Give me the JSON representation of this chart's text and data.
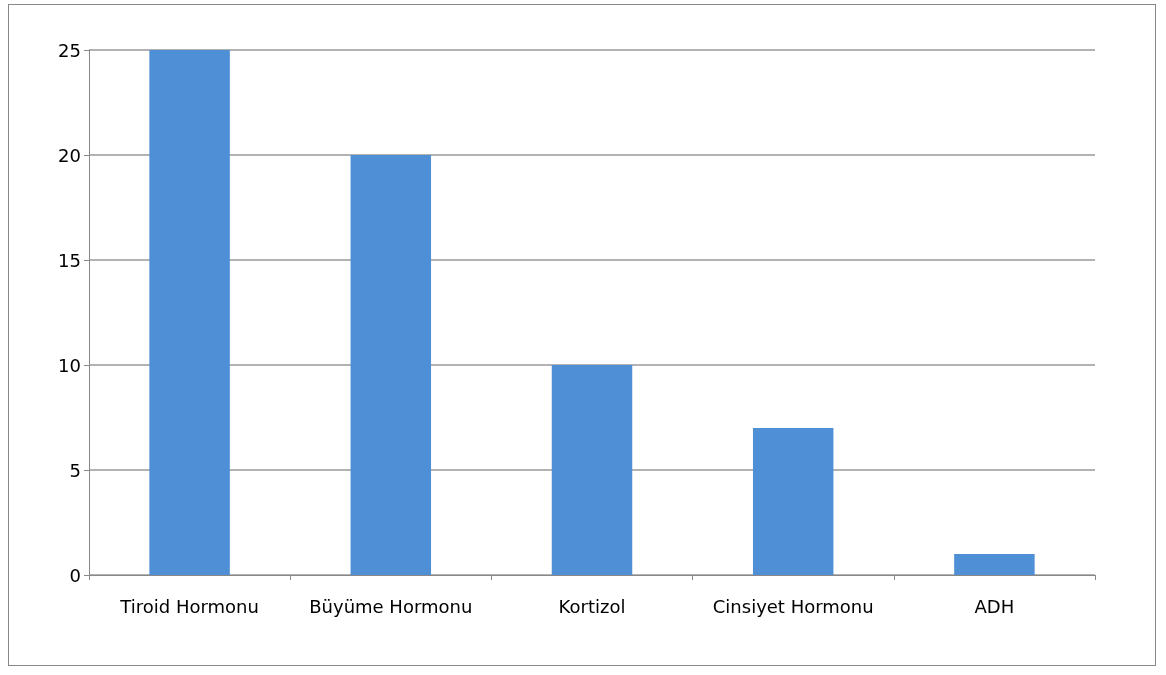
{
  "chart_data": {
    "type": "bar",
    "categories": [
      "Tiroid Hormonu",
      "Büyüme Hormonu",
      "Kortizol",
      "Cinsiyet Hormonu",
      "ADH"
    ],
    "values": [
      25,
      20,
      10,
      7,
      1
    ],
    "color": "#4f8fd6",
    "ylim": [
      0,
      25
    ],
    "yticks": [
      0,
      5,
      10,
      15,
      20,
      25
    ],
    "grid": "y"
  }
}
